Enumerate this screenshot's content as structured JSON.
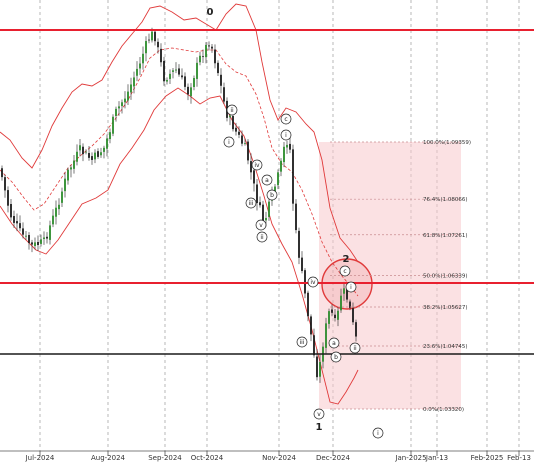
{
  "chart_data": {
    "type": "candlestick",
    "x_ticks": [
      "Jul-2024",
      "Aug-2024",
      "Sep-2024",
      "Oct-2024",
      "Nov-2024",
      "Dec-2024",
      "Jan-2025",
      "Jan-13",
      "Feb-2025",
      "Feb-13"
    ],
    "fibonacci_levels": [
      {
        "label": "100.0%(1.09359)",
        "price": 1.09359
      },
      {
        "label": "76.4%(1.08066)",
        "price": 1.08066
      },
      {
        "label": "61.8%(1.07261)",
        "price": 1.07261
      },
      {
        "label": "50.0%(1.06339)",
        "price": 1.06339
      },
      {
        "label": "38.2%(1.05627)",
        "price": 1.05627
      },
      {
        "label": "23.6%(1.04745)",
        "price": 1.04745
      },
      {
        "label": "0.0%(1.03320)",
        "price": 1.0332
      }
    ],
    "wave_labels_major": [
      "0",
      "1",
      "2"
    ],
    "wave_labels_minor": [
      "ii",
      "i",
      "iii",
      "iv",
      "v",
      "a",
      "b",
      "c",
      "i",
      "ii",
      "iii",
      "iv",
      "v",
      "a",
      "b",
      "c",
      "i",
      "ii",
      "i"
    ],
    "horizontal_lines": {
      "resistance": 1.1198,
      "support_band": 1.0625,
      "support": 1.0443
    },
    "grid": true,
    "colors": {
      "bands": "#e03a3a",
      "key_lines": "#e8202f",
      "support": "#1a1a1a",
      "fib_box": "#f7c9cc",
      "circle": "#e03a3a",
      "bull_candle": "#2a8a2a",
      "bear_candle": "#1a1a1a"
    }
  }
}
